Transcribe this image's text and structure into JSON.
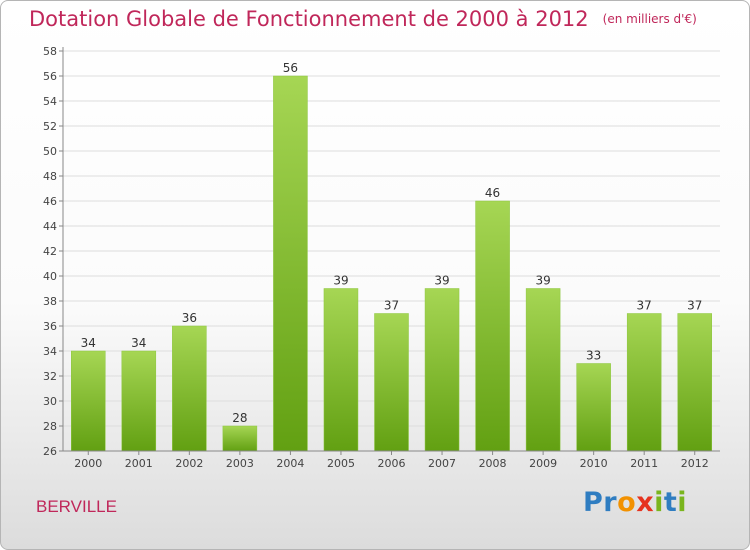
{
  "header": {
    "title": "Dotation Globale de Fonctionnement de 2000 à 2012",
    "unit": "(en milliers d'€)"
  },
  "footer": {
    "town": "BERVILLE",
    "logo": "Proxiti"
  },
  "colors": {
    "title": "#c0275a",
    "bar_light": "#a6d654",
    "bar_dark": "#62a012",
    "axis": "#888888",
    "grid": "#dddddd"
  },
  "chart_data": {
    "type": "bar",
    "title": "Dotation Globale de Fonctionnement de 2000 à 2012",
    "subtitle": "(en milliers d'€)",
    "categories": [
      "2000",
      "2001",
      "2002",
      "2003",
      "2004",
      "2005",
      "2006",
      "2007",
      "2008",
      "2009",
      "2010",
      "2011",
      "2012"
    ],
    "values": [
      34,
      34,
      36,
      28,
      56,
      39,
      37,
      39,
      46,
      39,
      33,
      37,
      37
    ],
    "data_labels": [
      "34",
      "34",
      "36",
      "28",
      "56",
      "39",
      "37",
      "39",
      "46",
      "39",
      "33",
      "37",
      "37"
    ],
    "ylim": [
      26,
      58
    ],
    "yticks": [
      26,
      28,
      30,
      32,
      34,
      36,
      38,
      40,
      42,
      44,
      46,
      48,
      50,
      52,
      54,
      56,
      58
    ],
    "xlabel": "",
    "ylabel": "",
    "grid": true
  }
}
